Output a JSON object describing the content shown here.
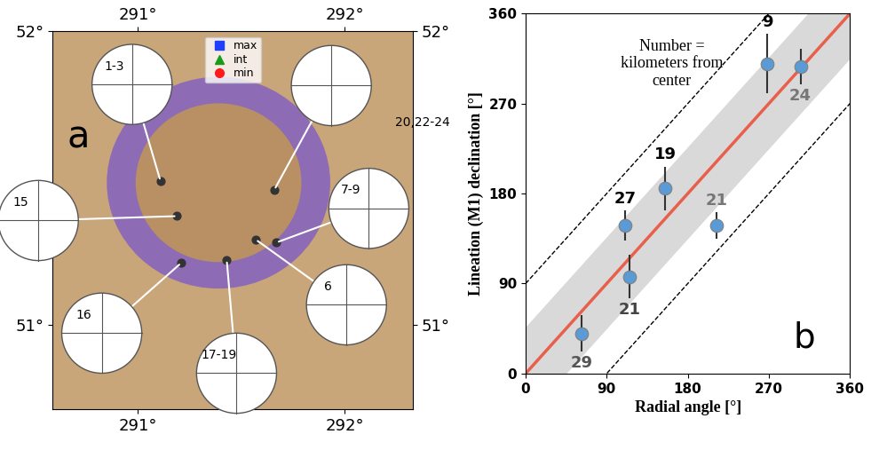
{
  "map": {
    "panel_label": "a",
    "xlim": [
      290.59,
      292.33
    ],
    "ylim": [
      50.71,
      52.0
    ],
    "xticks": [
      {
        "value": 291,
        "label": "291°"
      },
      {
        "value": 292,
        "label": "292°"
      }
    ],
    "yticks": [
      {
        "value": 51,
        "label": "51°"
      },
      {
        "value": 52,
        "label": "52°"
      }
    ],
    "legend": "upper center",
    "series": [
      {
        "name": "max",
        "color": "#1f3fff",
        "marker": "square"
      },
      {
        "name": "int",
        "color": "#1a9a1a",
        "marker": "triangle"
      },
      {
        "name": "min",
        "color": "#ff1a1a",
        "marker": "circle"
      }
    ],
    "stereonets": [
      {
        "label": "1-3",
        "site": [
          291.11,
          51.49
        ]
      },
      {
        "label": "20,22-24",
        "site": [
          291.66,
          51.46
        ]
      },
      {
        "label": "15",
        "site": [
          291.19,
          51.37
        ]
      },
      {
        "label": "7-9",
        "site": [
          291.67,
          51.28
        ]
      },
      {
        "label": "16",
        "site": [
          291.21,
          51.21
        ]
      },
      {
        "label": "17-19",
        "site": [
          291.43,
          51.22
        ]
      },
      {
        "label": "6",
        "site": [
          291.57,
          51.29
        ]
      }
    ]
  },
  "chart_data": {
    "type": "scatter",
    "panel_label": "b",
    "annotation": "Number =\nkilometers from\ncenter",
    "x_label": "Radial angle [°]",
    "y_label": "Lineation (M1) declination [°]",
    "xlim": [
      0,
      360
    ],
    "ylim": [
      0,
      360
    ],
    "xticks": [
      0,
      90,
      180,
      270,
      360
    ],
    "yticks": [
      0,
      90,
      180,
      270,
      360
    ],
    "x": [
      62,
      115,
      110,
      155,
      212,
      268,
      305
    ],
    "values": [
      40,
      97,
      148,
      185,
      148,
      310,
      307
    ],
    "errors": [
      18,
      22,
      15,
      22,
      13,
      30,
      18
    ],
    "distances_km": [
      29,
      21,
      27,
      19,
      21,
      9,
      24
    ],
    "color": "#5b9bd5",
    "reference_line": {
      "slope": 1,
      "color": "#e8604c"
    },
    "band_halfwidth": 45,
    "dashed_offset": 90
  }
}
